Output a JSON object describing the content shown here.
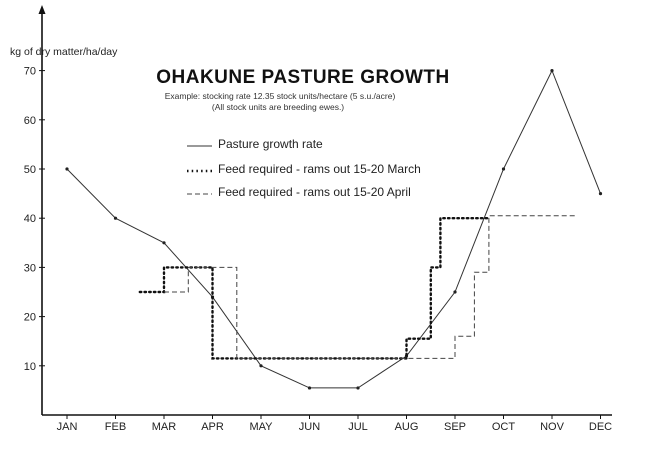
{
  "chart_data": {
    "type": "line",
    "title": "OHAKUNE PASTURE GROWTH",
    "subtitle_line1": "Example: stocking rate 12.35 stock units/hectare (5 s.u./acre)",
    "subtitle_line2": "(All stock units are breeding ewes.)",
    "ylabel": "kg of dry matter/ha/day",
    "xlabel": "",
    "categories": [
      "JAN",
      "FEB",
      "MAR",
      "APR",
      "MAY",
      "JUN",
      "JUL",
      "AUG",
      "SEP",
      "OCT",
      "NOV",
      "DEC"
    ],
    "yticks": [
      10,
      20,
      30,
      40,
      50,
      60,
      70
    ],
    "ylim": [
      0,
      75
    ],
    "grid": false,
    "legend_position": "top-center",
    "series": [
      {
        "name": "Pasture growth rate",
        "style": "solid",
        "x": [
          0,
          1,
          2,
          3,
          4,
          5,
          6,
          7,
          8,
          9,
          10,
          11
        ],
        "values": [
          50,
          40,
          35,
          24,
          10,
          5.5,
          5.5,
          12,
          25,
          50,
          70,
          45
        ]
      },
      {
        "name": "Feed required - rams out 15-20 March",
        "style": "dotted",
        "x": [
          1.5,
          2,
          2,
          2.5,
          2.5,
          3,
          3,
          7,
          7,
          7.5,
          7.5,
          7.7,
          7.7,
          8.7,
          8.7
        ],
        "values": [
          25,
          25,
          30,
          30,
          30,
          30,
          11.5,
          11.5,
          15.5,
          15.5,
          30,
          30,
          40,
          40,
          40
        ]
      },
      {
        "name": "Feed required - rams out 15-20 April",
        "style": "dashed",
        "x": [
          2,
          2.5,
          2.5,
          3.5,
          3.5,
          7.5,
          7.5,
          8,
          8,
          8.4,
          8.4,
          8.7,
          8.7,
          10.5
        ],
        "values": [
          25,
          25,
          30,
          30,
          11.5,
          11.5,
          11.5,
          11.5,
          16,
          16,
          29,
          29,
          40.5,
          40.5
        ]
      }
    ]
  }
}
